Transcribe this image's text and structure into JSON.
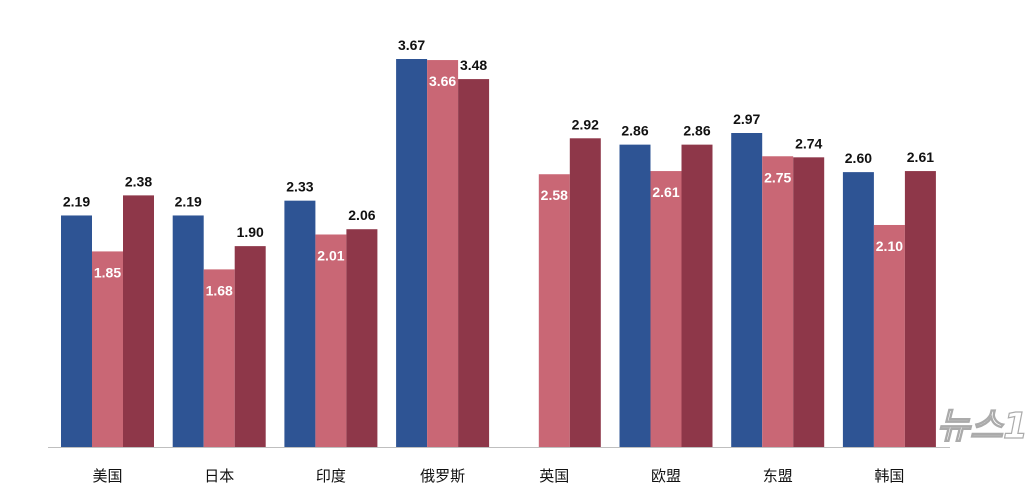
{
  "chart_data": {
    "type": "bar",
    "categories": [
      "美国",
      "日本",
      "印度",
      "俄罗斯",
      "英国",
      "欧盟",
      "东盟",
      "韩国"
    ],
    "series": [
      {
        "values": [
          2.19,
          2.19,
          2.33,
          3.67,
          null,
          2.86,
          2.97,
          2.6
        ],
        "color": "#2E5494"
      },
      {
        "values": [
          1.85,
          1.68,
          2.01,
          3.66,
          2.58,
          2.61,
          2.75,
          2.1
        ],
        "color": "#C96775"
      },
      {
        "values": [
          2.38,
          1.9,
          2.06,
          3.48,
          2.92,
          2.86,
          2.74,
          2.61
        ],
        "color": "#8E3749"
      }
    ],
    "ylim": [
      0,
      3.67
    ],
    "grid": false,
    "legend": "none",
    "data_labels": true,
    "xlabel": "",
    "ylabel": "",
    "title": ""
  },
  "watermark": "뉴스1"
}
